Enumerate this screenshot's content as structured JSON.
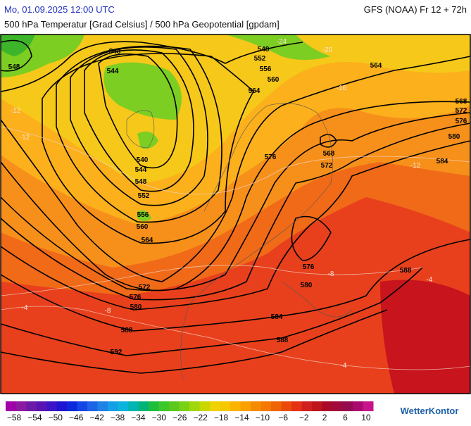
{
  "header": {
    "datetime": "Mo, 01.09.2025 12:00 UTC",
    "model": "GFS (NOAA) Fr 12 + 72h",
    "subtitle": "500 hPa Temperatur [Grad Celsius] / 500 hPa Geopotential [gpdam]"
  },
  "contour_labels": [
    "548",
    "548",
    "544",
    "548",
    "552",
    "556",
    "560",
    "564",
    "564",
    "568",
    "572",
    "576",
    "580",
    "584",
    "568",
    "572",
    "576",
    "540",
    "544",
    "548",
    "552",
    "556",
    "560",
    "564",
    "572",
    "576",
    "580",
    "584",
    "588",
    "588",
    "592",
    "580",
    "576",
    "588"
  ],
  "isotherm_labels": [
    "-24",
    "-20",
    "-16",
    "-12",
    "-12",
    "-12",
    "-8",
    "-8",
    "-4",
    "-4",
    "-4"
  ],
  "colorbar": {
    "labels": [
      "−58",
      "−54",
      "−50",
      "−46",
      "−42",
      "−38",
      "−34",
      "−30",
      "−26",
      "−22",
      "−18",
      "−14",
      "−10",
      "−6",
      "−2",
      "2",
      "6",
      "10"
    ]
  },
  "logo": "WetterKontor"
}
